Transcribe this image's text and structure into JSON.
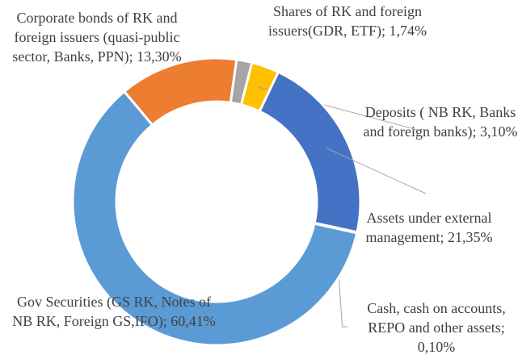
{
  "chart_data": {
    "type": "pie",
    "donut": true,
    "values": [
      1.74,
      3.1,
      21.35,
      0.1,
      60.41,
      13.3
    ],
    "value_labels": [
      "Shares of RK and foreign issuers(GDR, ETF); 1,74%",
      "Deposits ( NB RK, Banks and foreign banks); 3,10%",
      "Assets under external management; 21,35%",
      "Cash, cash on accounts, REPO and other assets; 0,10%",
      "Gov Securities (GS RK, Notes of NB RK, Foreign GS,IFO); 60,41%",
      "Corporate bonds of RK and foreign issuers (quasi-public sector, Banks, PPN); 13,30%"
    ],
    "colors": [
      "#A5A5A5",
      "#FFC000",
      "#4472C4",
      "#264478",
      "#5B9BD5",
      "#ED7D31"
    ]
  }
}
